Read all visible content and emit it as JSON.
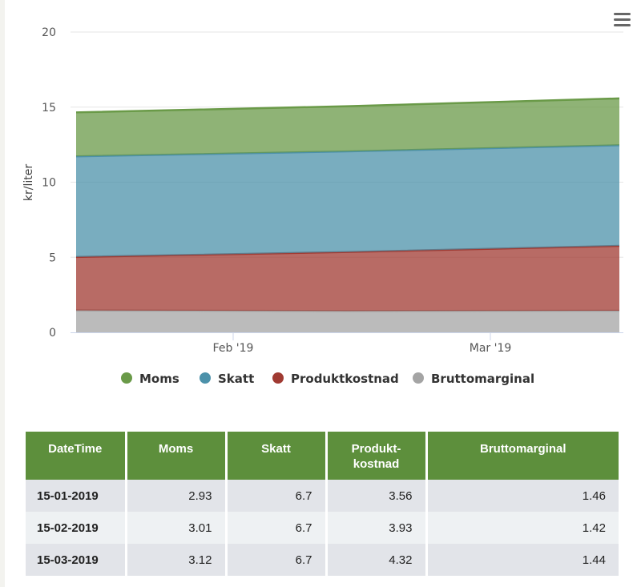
{
  "chart_data": {
    "type": "area",
    "stacked": true,
    "ylabel": "kr/liter",
    "ylim": [
      0,
      20
    ],
    "y_ticks": [
      "0",
      "5",
      "10",
      "15",
      "20"
    ],
    "x_tick_labels": [
      "Feb '19",
      "Mar '19"
    ],
    "x": [
      "15-01-2019",
      "15-02-2019",
      "15-03-2019"
    ],
    "series": [
      {
        "name": "Moms",
        "color": "#6a9a48",
        "values": [
          2.93,
          3.01,
          3.12
        ]
      },
      {
        "name": "Skatt",
        "color": "#4c91aa",
        "values": [
          6.7,
          6.7,
          6.7
        ]
      },
      {
        "name": "Produktkostnad",
        "color": "#a03a32",
        "values": [
          3.56,
          3.93,
          4.32
        ]
      },
      {
        "name": "Bruttomarginal",
        "color": "#a4a4a4",
        "values": [
          1.46,
          1.42,
          1.44
        ]
      }
    ],
    "grid": true,
    "legend_position": "bottom"
  },
  "table": {
    "headers": [
      "DateTime",
      "Moms",
      "Skatt",
      "Produkt-\nkostnad",
      "Bruttomarginal"
    ],
    "rows": [
      [
        "15-01-2019",
        "2.93",
        "6.7",
        "3.56",
        "1.46"
      ],
      [
        "15-02-2019",
        "3.01",
        "6.7",
        "3.93",
        "1.42"
      ],
      [
        "15-03-2019",
        "3.12",
        "6.7",
        "4.32",
        "1.44"
      ]
    ]
  },
  "menu_icon": "hamburger-menu-icon"
}
